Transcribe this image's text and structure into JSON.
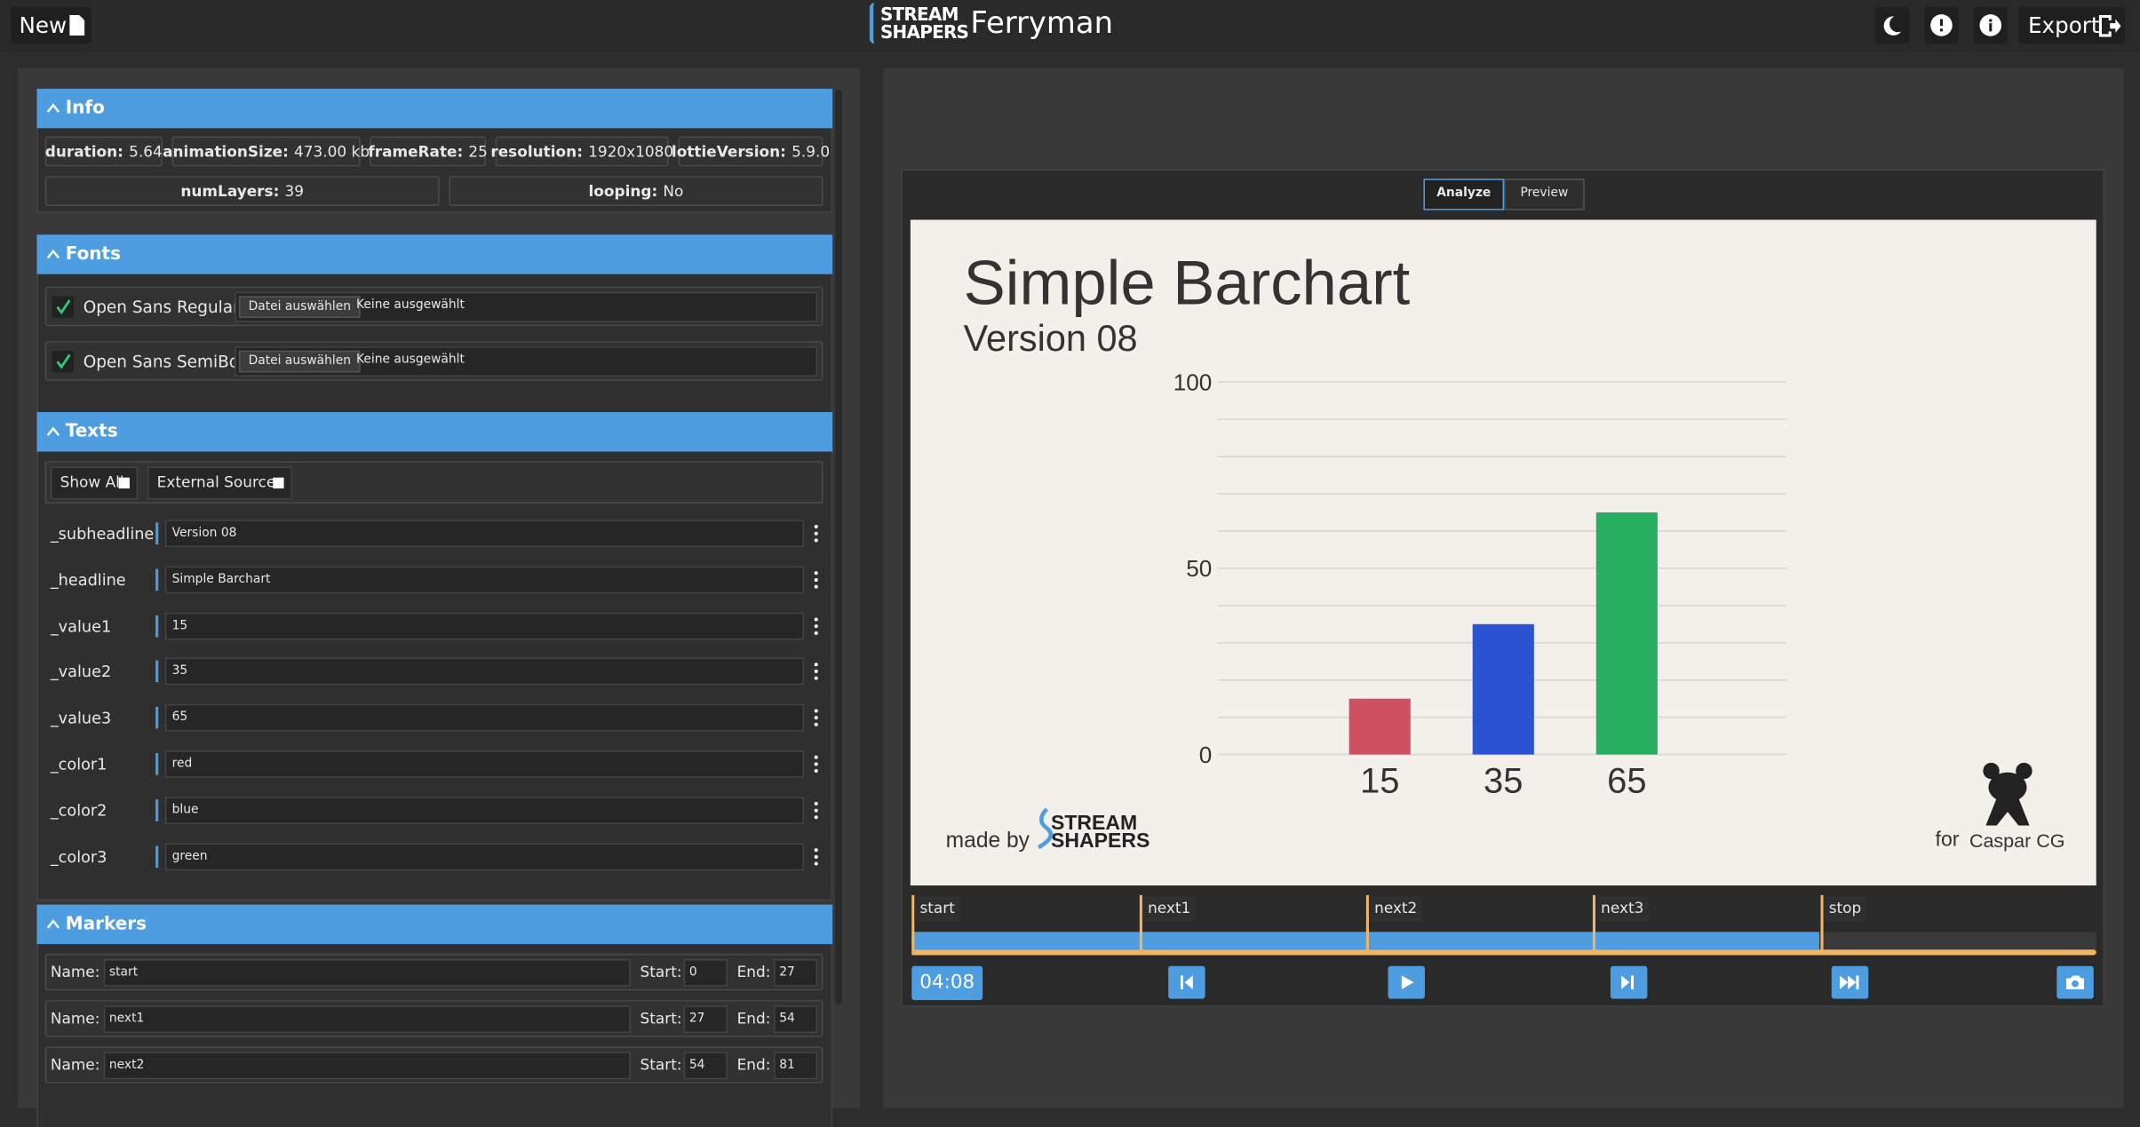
{
  "header": {
    "new": "New",
    "brand_top": "STREAM",
    "brand_bottom": "SHAPERS",
    "title": "Ferryman",
    "export": "Export"
  },
  "info": {
    "title": "Info",
    "items": [
      {
        "key": "duration:",
        "value": "5.64"
      },
      {
        "key": "animationSize:",
        "value": "473.00 kb"
      },
      {
        "key": "frameRate:",
        "value": "25"
      },
      {
        "key": "resolution:",
        "value": "1920x1080"
      },
      {
        "key": "lottieVersion:",
        "value": "5.9.0"
      },
      {
        "key": "numLayers:",
        "value": "39"
      },
      {
        "key": "looping:",
        "value": "No"
      }
    ]
  },
  "fonts": {
    "title": "Fonts",
    "items": [
      {
        "name": "Open Sans Regular",
        "button": "Datei auswählen",
        "file": "Keine ausgewählt"
      },
      {
        "name": "Open Sans SemiBold",
        "button": "Datei auswählen",
        "file": "Keine ausgewählt"
      }
    ]
  },
  "texts": {
    "title": "Texts",
    "show_all": "Show All",
    "external": "External Sources",
    "rows": [
      {
        "key": "_subheadline",
        "value": "Version 08"
      },
      {
        "key": "_headline",
        "value": "Simple Barchart"
      },
      {
        "key": "_value1",
        "value": "15"
      },
      {
        "key": "_value2",
        "value": "35"
      },
      {
        "key": "_value3",
        "value": "65"
      },
      {
        "key": "_color1",
        "value": "red"
      },
      {
        "key": "_color2",
        "value": "blue"
      },
      {
        "key": "_color3",
        "value": "green"
      }
    ]
  },
  "markers": {
    "title": "Markers",
    "name_label": "Name:",
    "start_label": "Start:",
    "end_label": "End:",
    "rows": [
      {
        "name": "start",
        "start": 0,
        "end": 27
      },
      {
        "name": "next1",
        "start": 27,
        "end": 54
      },
      {
        "name": "next2",
        "start": 54,
        "end": 81
      }
    ]
  },
  "player": {
    "tabs": [
      "Analyze",
      "Preview"
    ],
    "time": "04:08",
    "markers": [
      "start",
      "next1",
      "next2",
      "next3",
      "stop"
    ]
  },
  "chart_data": {
    "type": "bar",
    "title": "Simple Barchart",
    "subtitle": "Version 08",
    "values": [
      15,
      35,
      65
    ],
    "colors": [
      "#cf5161",
      "#2b53d4",
      "#27ae60"
    ],
    "ylim": [
      0,
      100
    ],
    "yticks": [
      0,
      50,
      100
    ],
    "minor_yticks": [
      10,
      20,
      30,
      40,
      60,
      70,
      80,
      90
    ],
    "grid": true,
    "made_by": "made by",
    "brand_top": "STREAM",
    "brand_bottom": "SHAPERS",
    "for": "for",
    "caspar": "Caspar CG"
  }
}
